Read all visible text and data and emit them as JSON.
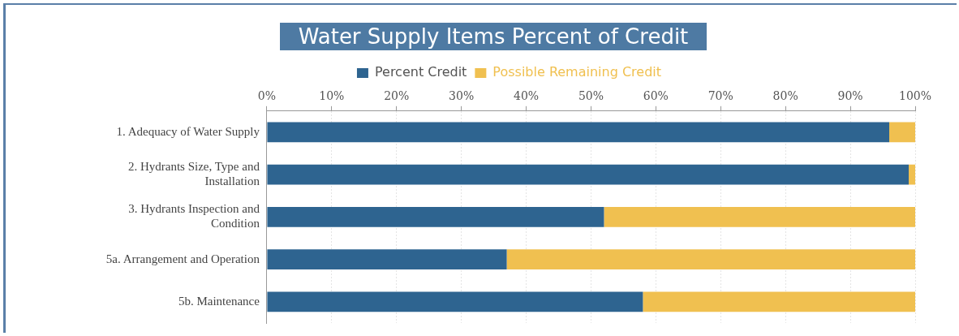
{
  "chart_data": {
    "type": "bar",
    "orientation": "horizontal",
    "stacked": true,
    "title": "Water Supply Items Percent of Credit",
    "categories": [
      "1. Adequacy of Water Supply",
      "2. Hydrants Size, Type and Installation",
      "3. Hydrants Inspection and Condition",
      "5a. Arrangement and Operation",
      "5b. Maintenance"
    ],
    "series": [
      {
        "name": "Percent Credit",
        "color": "#2e6490",
        "values": [
          96,
          99,
          52,
          37,
          58
        ]
      },
      {
        "name": "Possible Remaining Credit",
        "color": "#f0c050",
        "values": [
          4,
          1,
          48,
          63,
          42
        ]
      }
    ],
    "xlim": [
      0,
      100
    ],
    "xticks": [
      {
        "value": 0,
        "label": "0%"
      },
      {
        "value": 10,
        "label": "10%"
      },
      {
        "value": 20,
        "label": "20%"
      },
      {
        "value": 30,
        "label": "30%"
      },
      {
        "value": 40,
        "label": "40%"
      },
      {
        "value": 50,
        "label": "50%"
      },
      {
        "value": 60,
        "label": "60%"
      },
      {
        "value": 70,
        "label": "70%"
      },
      {
        "value": 80,
        "label": "80%"
      },
      {
        "value": 90,
        "label": "90%"
      },
      {
        "value": 100,
        "label": "100%"
      }
    ],
    "grid": "x",
    "legend": "top"
  }
}
